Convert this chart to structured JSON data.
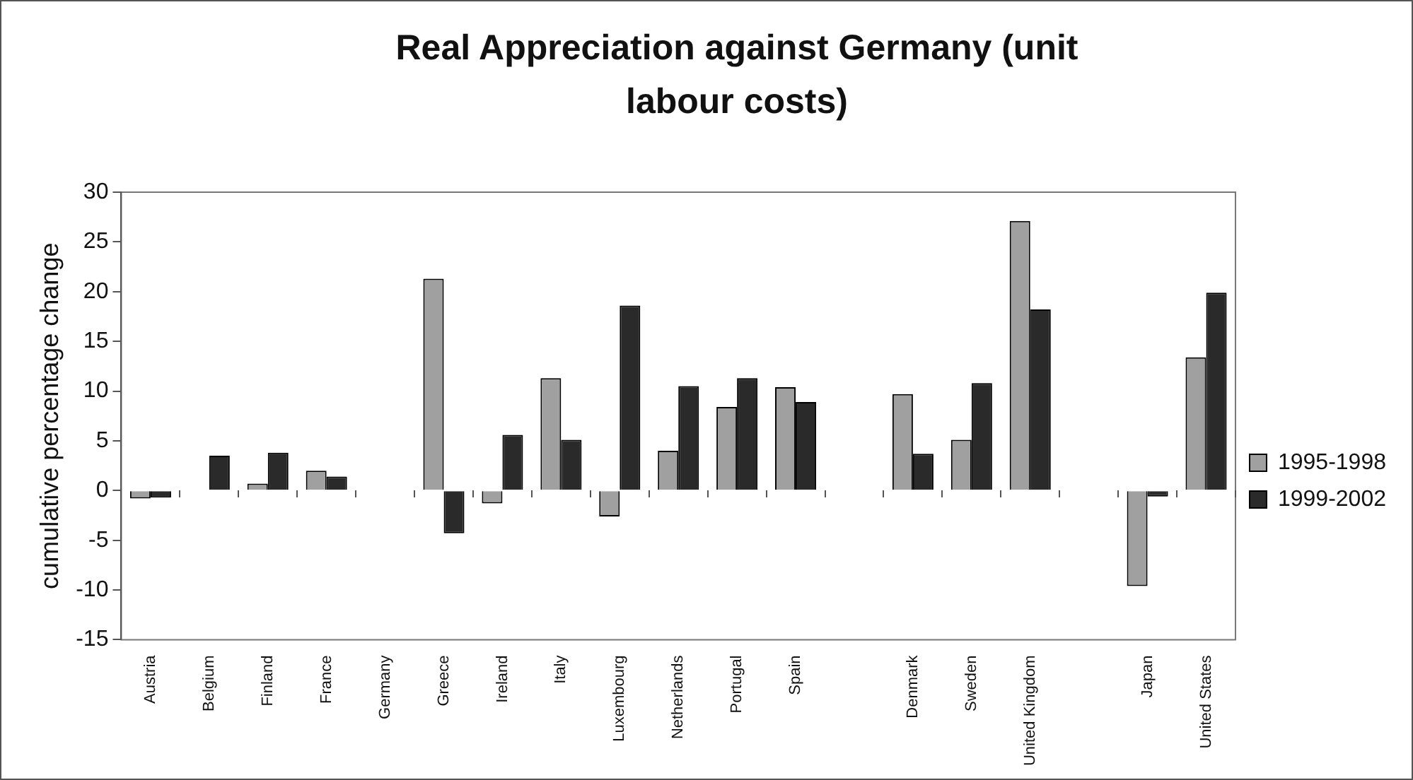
{
  "chart_data": {
    "type": "bar",
    "title": "Real Appreciation against Germany (unit labour costs)",
    "ylabel": "cumulative percentage change",
    "categories": [
      "Austria",
      "Belgium",
      "Finland",
      "France",
      "Germany",
      "Greece",
      "Ireland",
      "Italy",
      "Luxembourg",
      "Netherlands",
      "Portugal",
      "Spain",
      null,
      "Denmark",
      "Sweden",
      "United Kingdom",
      null,
      "Japan",
      "United States"
    ],
    "series": [
      {
        "name": "1995-1998",
        "color": "#a0a0a0",
        "values": [
          -0.8,
          0,
          0.7,
          2.0,
          0,
          21.3,
          -1.3,
          11.3,
          -2.6,
          4.0,
          8.4,
          10.4,
          null,
          9.7,
          5.1,
          27.1,
          null,
          -9.6,
          13.4
        ]
      },
      {
        "name": "1999-2002",
        "color": "#2a2a2a",
        "values": [
          -0.7,
          3.5,
          3.8,
          1.4,
          0,
          -4.3,
          5.6,
          5.1,
          18.6,
          10.5,
          11.3,
          8.9,
          null,
          3.7,
          10.8,
          18.2,
          null,
          -0.6,
          19.9
        ]
      }
    ],
    "ylim": [
      -15,
      30
    ],
    "yticks": [
      -15,
      -10,
      -5,
      0,
      5,
      10,
      15,
      20,
      25,
      30
    ],
    "grid": false,
    "legend": "right"
  }
}
